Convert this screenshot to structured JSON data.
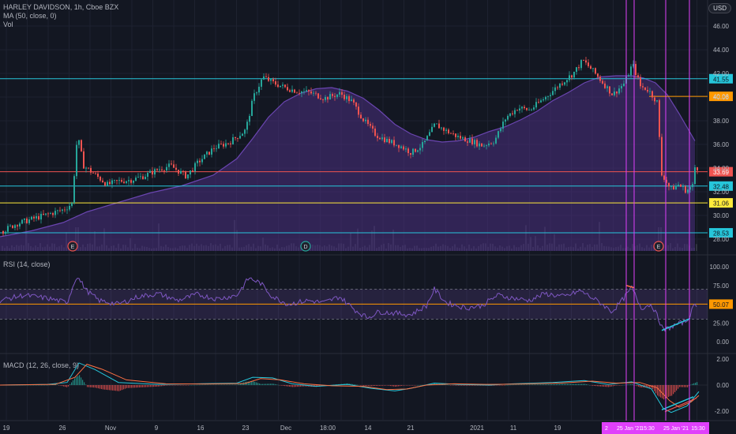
{
  "legend": {
    "title": "HARLEY DAVIDSON, 1h, Cboe BZX",
    "ma": "MA (50, close, 0)",
    "vol": "Vol",
    "rsi": "RSI (14, close)",
    "macd": "MACD (12, 26, close, 9)"
  },
  "currency": "USD",
  "colors": {
    "background": "#131722",
    "up": "#26a69a",
    "down": "#ef5350",
    "ma_fill": "#4b2f7f",
    "cyan_line": "#26c6da",
    "orange_line": "#ff9800",
    "yellow_line": "#ffeb3b",
    "magenta": "#e040fb",
    "rsi_line": "#7e57c2"
  },
  "chart_data": [
    {
      "type": "candlestick",
      "title": "HARLEY DAVIDSON, 1h, Cboe BZX",
      "ylim": [
        27,
        47
      ],
      "y_ticks": [
        "46.00",
        "44.00",
        "42.00",
        "40.00",
        "38.00",
        "36.00",
        "34.00",
        "32.00",
        "30.00",
        "28.00"
      ],
      "x_ticks": [
        "19",
        "26",
        "Nov",
        "9",
        "16",
        "23",
        "Dec",
        "18:00",
        "14",
        "21",
        "2021",
        "11",
        "19"
      ],
      "price_path": [
        [
          0,
          28.6
        ],
        [
          20,
          29.3
        ],
        [
          40,
          29.7
        ],
        [
          60,
          30.1
        ],
        [
          80,
          30.5
        ],
        [
          90,
          31.0
        ],
        [
          97,
          36.8
        ],
        [
          105,
          34.2
        ],
        [
          120,
          33.4
        ],
        [
          135,
          32.6
        ],
        [
          150,
          32.9
        ],
        [
          165,
          33.0
        ],
        [
          180,
          33.3
        ],
        [
          200,
          33.9
        ],
        [
          215,
          34.2
        ],
        [
          235,
          33.3
        ],
        [
          250,
          34.5
        ],
        [
          270,
          35.7
        ],
        [
          290,
          36.2
        ],
        [
          310,
          37.2
        ],
        [
          320,
          40.0
        ],
        [
          332,
          41.7
        ],
        [
          345,
          41.2
        ],
        [
          360,
          40.8
        ],
        [
          375,
          40.5
        ],
        [
          390,
          40.4
        ],
        [
          410,
          39.9
        ],
        [
          430,
          40.3
        ],
        [
          445,
          39.6
        ],
        [
          460,
          38.0
        ],
        [
          475,
          36.8
        ],
        [
          490,
          36.3
        ],
        [
          505,
          35.9
        ],
        [
          520,
          35.3
        ],
        [
          535,
          36.0
        ],
        [
          550,
          37.7
        ],
        [
          565,
          37.1
        ],
        [
          580,
          36.6
        ],
        [
          595,
          36.3
        ],
        [
          610,
          35.9
        ],
        [
          625,
          36.3
        ],
        [
          640,
          38.3
        ],
        [
          655,
          39.1
        ],
        [
          670,
          38.9
        ],
        [
          690,
          40.0
        ],
        [
          710,
          41.2
        ],
        [
          725,
          42.0
        ],
        [
          737,
          43.1
        ],
        [
          750,
          42.2
        ],
        [
          765,
          41.0
        ],
        [
          775,
          40.2
        ],
        [
          790,
          41.2
        ],
        [
          800,
          42.8
        ],
        [
          810,
          40.9
        ],
        [
          820,
          40.6
        ],
        [
          832,
          39.5
        ],
        [
          836,
          33.5
        ],
        [
          840,
          33.2
        ],
        [
          848,
          32.2
        ],
        [
          858,
          32.6
        ],
        [
          868,
          32.1
        ],
        [
          876,
          32.5
        ],
        [
          880,
          34.6
        ],
        [
          883,
          33.7
        ]
      ],
      "ma_path": [
        [
          0,
          28.2
        ],
        [
          40,
          28.7
        ],
        [
          80,
          29.4
        ],
        [
          110,
          30.3
        ],
        [
          150,
          31.1
        ],
        [
          190,
          31.9
        ],
        [
          230,
          32.5
        ],
        [
          270,
          33.4
        ],
        [
          300,
          34.8
        ],
        [
          320,
          36.5
        ],
        [
          340,
          38.3
        ],
        [
          360,
          39.6
        ],
        [
          380,
          40.3
        ],
        [
          400,
          40.7
        ],
        [
          420,
          40.8
        ],
        [
          440,
          40.5
        ],
        [
          460,
          39.9
        ],
        [
          480,
          38.9
        ],
        [
          500,
          37.7
        ],
        [
          520,
          36.9
        ],
        [
          540,
          36.4
        ],
        [
          560,
          36.2
        ],
        [
          580,
          36.3
        ],
        [
          600,
          36.6
        ],
        [
          620,
          37.1
        ],
        [
          640,
          37.5
        ],
        [
          660,
          38.1
        ],
        [
          680,
          38.8
        ],
        [
          700,
          39.7
        ],
        [
          720,
          40.4
        ],
        [
          740,
          41.2
        ],
        [
          760,
          41.7
        ],
        [
          780,
          41.8
        ],
        [
          800,
          41.8
        ],
        [
          815,
          41.6
        ],
        [
          830,
          41.2
        ],
        [
          845,
          40.2
        ],
        [
          860,
          38.6
        ],
        [
          880,
          36.3
        ]
      ],
      "horizontal_levels": [
        {
          "value": 41.55,
          "label": "41.55",
          "color": "#26c6da"
        },
        {
          "value": 40.06,
          "label": "40.06",
          "color": "#ff9800"
        },
        {
          "value": 33.69,
          "label": "33.69",
          "color": "#ef5350"
        },
        {
          "value": 32.48,
          "label": "32.48",
          "color": "#26c6da"
        },
        {
          "value": 31.06,
          "label": "31.06",
          "color": "#ffeb3b"
        },
        {
          "value": 28.53,
          "label": "28.53",
          "color": "#26c6da"
        }
      ],
      "event_markers": [
        {
          "x": 92,
          "label": "E"
        },
        {
          "x": 387,
          "label": "D"
        },
        {
          "x": 834,
          "label": "E"
        }
      ]
    },
    {
      "type": "line",
      "title": "RSI (14, close)",
      "ylim": [
        0,
        100
      ],
      "y_ticks": [
        "100.00",
        "75.00",
        "50.00",
        "25.00",
        "0.00"
      ],
      "bands": [
        70,
        30
      ],
      "level": {
        "value": 50.07,
        "label": "50.07"
      },
      "rsi_path": [
        [
          0,
          55
        ],
        [
          30,
          62
        ],
        [
          60,
          58
        ],
        [
          85,
          52
        ],
        [
          97,
          88
        ],
        [
          110,
          68
        ],
        [
          125,
          55
        ],
        [
          150,
          50
        ],
        [
          175,
          60
        ],
        [
          200,
          64
        ],
        [
          225,
          55
        ],
        [
          250,
          63
        ],
        [
          275,
          57
        ],
        [
          300,
          62
        ],
        [
          315,
          85
        ],
        [
          330,
          78
        ],
        [
          345,
          60
        ],
        [
          365,
          50
        ],
        [
          390,
          55
        ],
        [
          410,
          52
        ],
        [
          430,
          60
        ],
        [
          450,
          42
        ],
        [
          465,
          32
        ],
        [
          480,
          40
        ],
        [
          500,
          38
        ],
        [
          520,
          36
        ],
        [
          540,
          48
        ],
        [
          550,
          70
        ],
        [
          565,
          52
        ],
        [
          590,
          45
        ],
        [
          610,
          48
        ],
        [
          630,
          62
        ],
        [
          650,
          58
        ],
        [
          670,
          55
        ],
        [
          690,
          64
        ],
        [
          715,
          60
        ],
        [
          735,
          68
        ],
        [
          760,
          52
        ],
        [
          775,
          40
        ],
        [
          790,
          58
        ],
        [
          800,
          72
        ],
        [
          812,
          45
        ],
        [
          825,
          50
        ],
        [
          835,
          28
        ],
        [
          840,
          15
        ],
        [
          855,
          22
        ],
        [
          870,
          28
        ],
        [
          880,
          50
        ]
      ]
    },
    {
      "type": "line",
      "title": "MACD (12, 26, close, 9)",
      "ylim": [
        -2.2,
        2.2
      ],
      "y_ticks": [
        "2.00",
        "0.00",
        "-2.00"
      ],
      "macd_path": [
        [
          0,
          0.0
        ],
        [
          60,
          0.05
        ],
        [
          85,
          0.2
        ],
        [
          100,
          1.7
        ],
        [
          120,
          1.2
        ],
        [
          150,
          0.2
        ],
        [
          200,
          0.05
        ],
        [
          250,
          0.1
        ],
        [
          300,
          0.15
        ],
        [
          320,
          0.6
        ],
        [
          345,
          0.55
        ],
        [
          370,
          0.1
        ],
        [
          400,
          -0.1
        ],
        [
          440,
          0.05
        ],
        [
          470,
          -0.25
        ],
        [
          500,
          -0.45
        ],
        [
          520,
          -0.25
        ],
        [
          550,
          0.15
        ],
        [
          580,
          0.05
        ],
        [
          620,
          0.0
        ],
        [
          650,
          0.1
        ],
        [
          700,
          0.2
        ],
        [
          740,
          0.35
        ],
        [
          770,
          0.05
        ],
        [
          800,
          0.25
        ],
        [
          825,
          -0.3
        ],
        [
          840,
          -1.8
        ],
        [
          850,
          -2.1
        ],
        [
          870,
          -1.6
        ],
        [
          885,
          -0.5
        ]
      ],
      "signal_path": [
        [
          0,
          0.0
        ],
        [
          70,
          0.05
        ],
        [
          95,
          0.6
        ],
        [
          110,
          1.6
        ],
        [
          130,
          1.2
        ],
        [
          160,
          0.4
        ],
        [
          210,
          0.1
        ],
        [
          260,
          0.08
        ],
        [
          310,
          0.12
        ],
        [
          330,
          0.5
        ],
        [
          355,
          0.4
        ],
        [
          385,
          0.1
        ],
        [
          420,
          -0.05
        ],
        [
          460,
          -0.1
        ],
        [
          490,
          -0.35
        ],
        [
          515,
          -0.3
        ],
        [
          540,
          0.0
        ],
        [
          575,
          0.1
        ],
        [
          615,
          0.05
        ],
        [
          660,
          0.08
        ],
        [
          710,
          0.15
        ],
        [
          750,
          0.3
        ],
        [
          780,
          0.15
        ],
        [
          810,
          0.2
        ],
        [
          832,
          -0.2
        ],
        [
          848,
          -1.2
        ],
        [
          860,
          -1.7
        ],
        [
          875,
          -1.3
        ],
        [
          885,
          -0.8
        ]
      ]
    }
  ],
  "vertical_markers": [
    {
      "x": 793,
      "color": "#e040fb"
    },
    {
      "x": 803,
      "color": "#e040fb"
    },
    {
      "x": 843,
      "color": "#e040fb"
    },
    {
      "x": 873,
      "color": "#e040fb"
    }
  ],
  "axis_badges": [
    "2",
    "25 Jan '21",
    "15:30",
    "25 Jan '21",
    "15:30"
  ]
}
